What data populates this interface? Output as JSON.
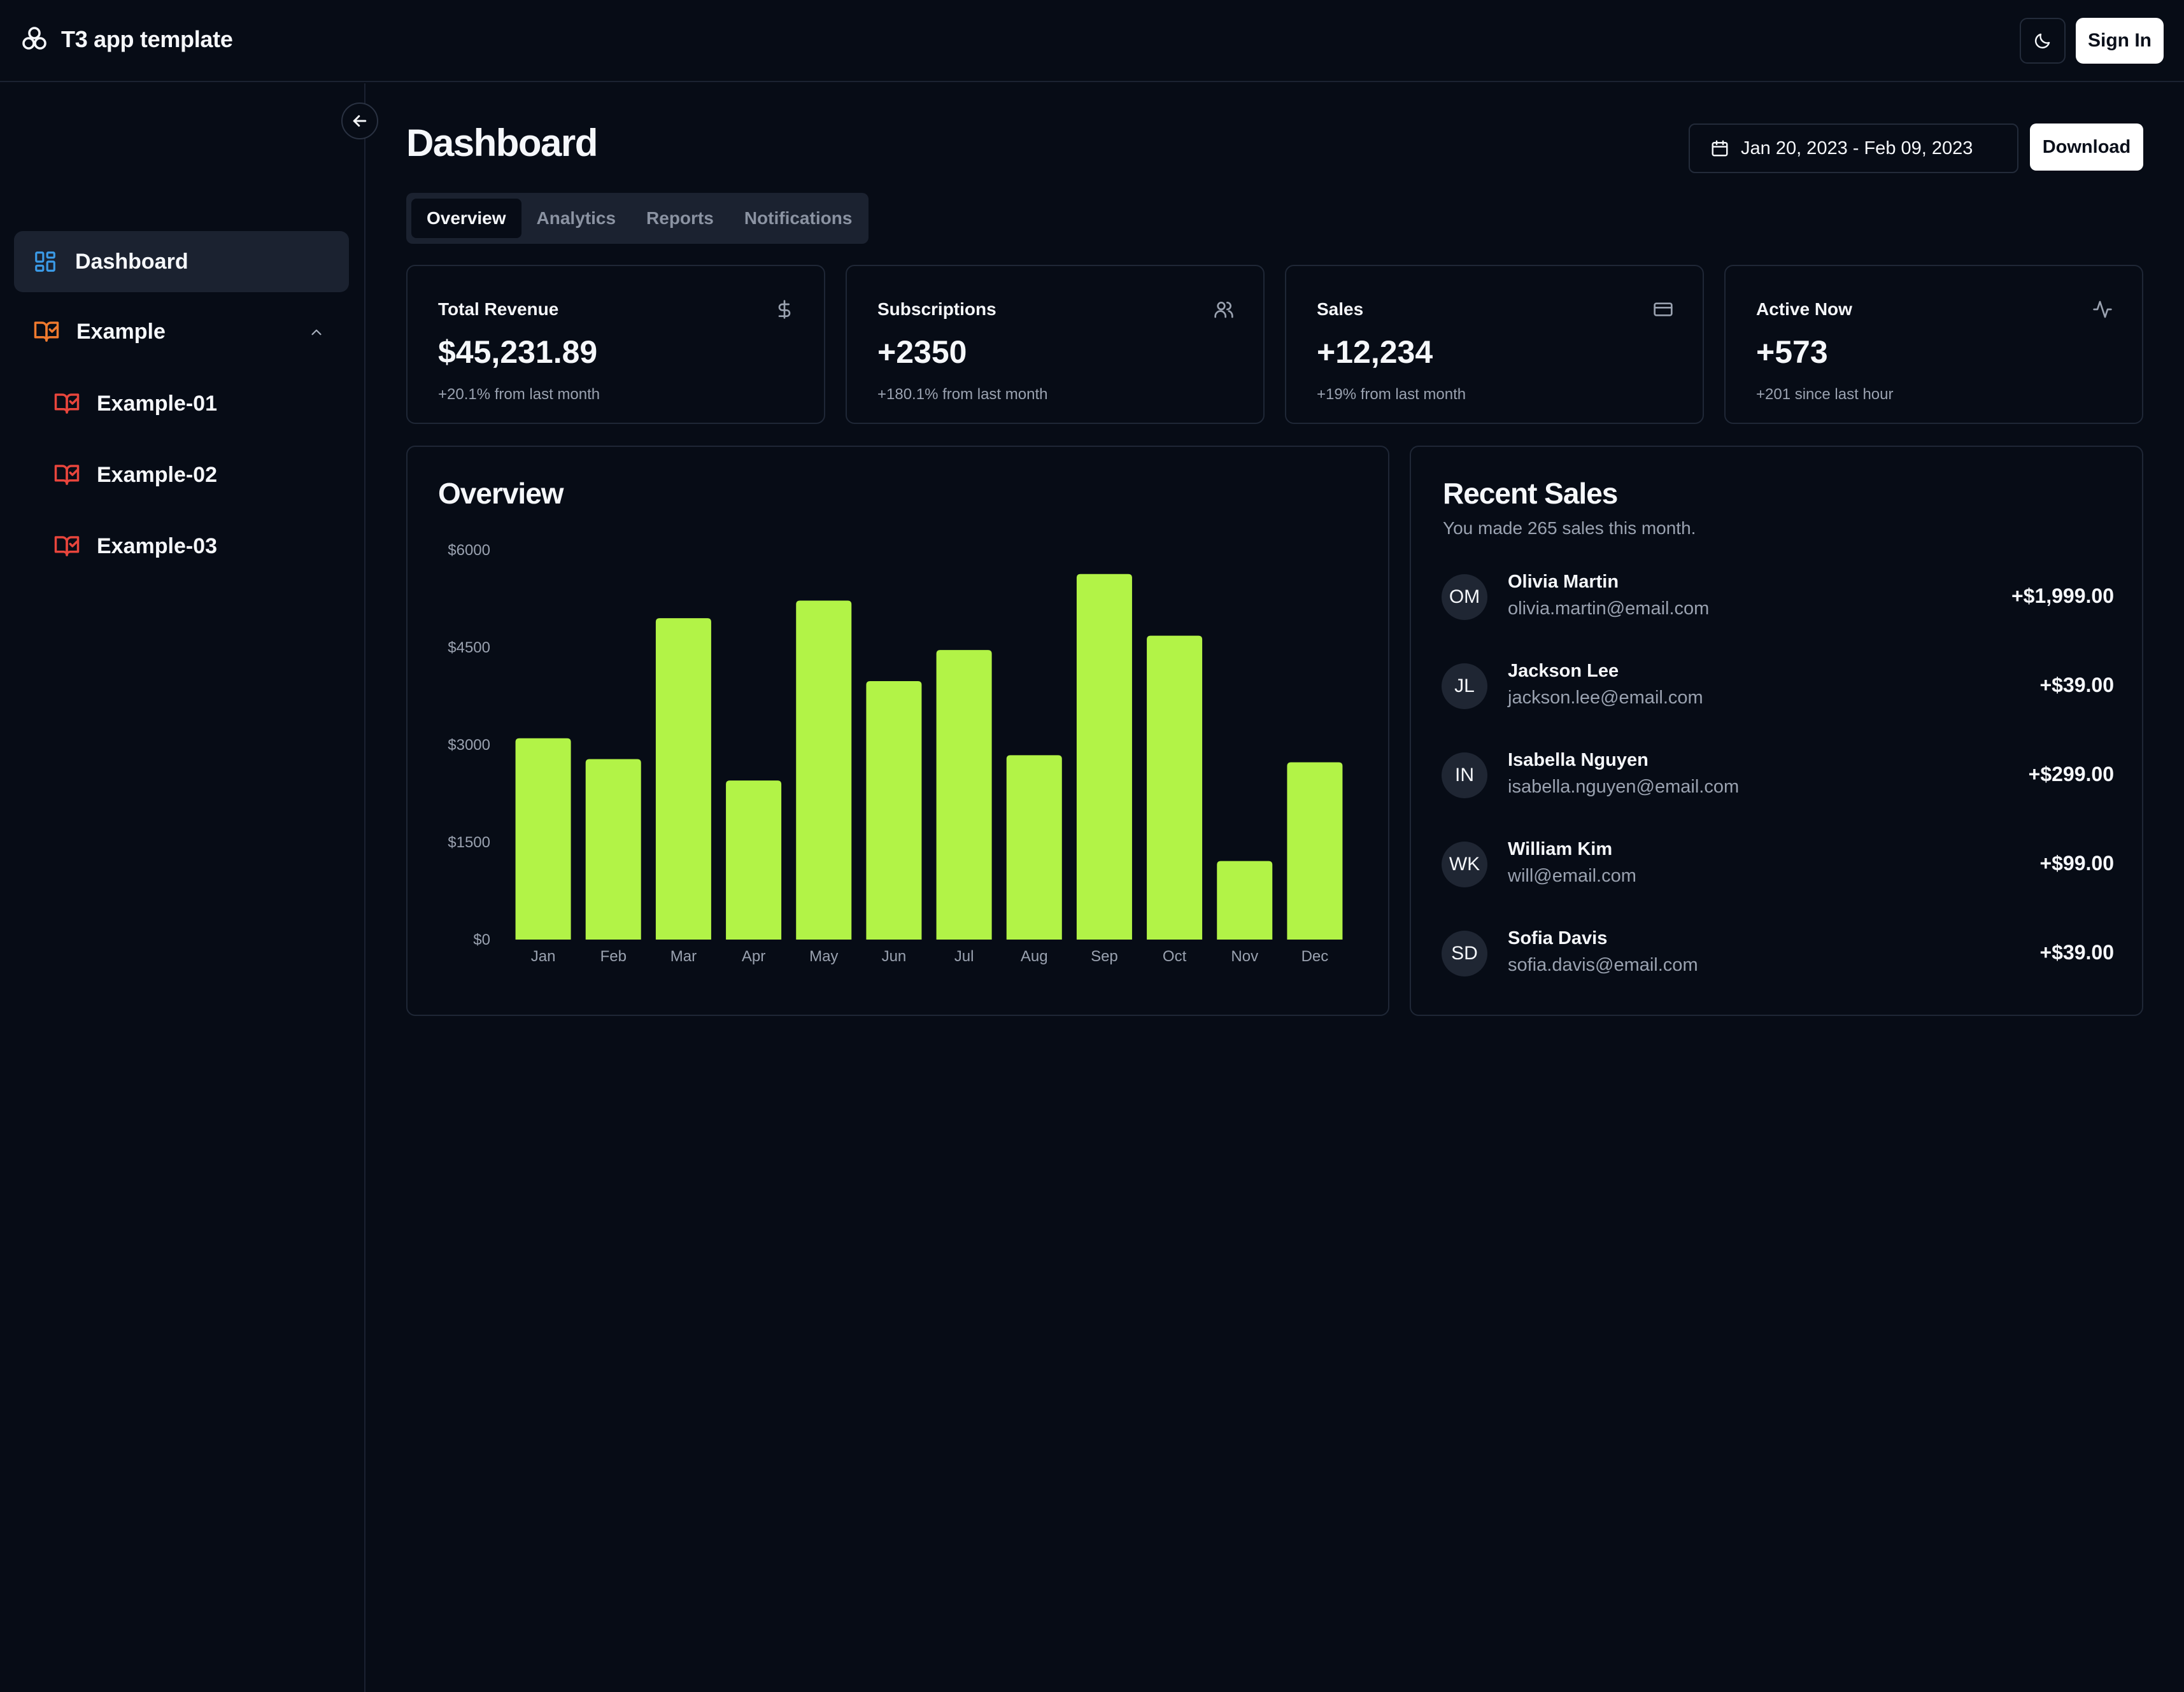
{
  "app": {
    "title": "T3 app template"
  },
  "header": {
    "theme_icon": "moon-icon",
    "sign_in_label": "Sign In"
  },
  "sidebar": {
    "collapse_icon": "arrow-left-icon",
    "items": [
      {
        "label": "Dashboard",
        "icon": "dashboard-grid-icon",
        "active": true
      },
      {
        "label": "Example",
        "icon": "book-check-icon",
        "expanded": true,
        "children": [
          {
            "label": "Example-01",
            "icon": "book-check-icon"
          },
          {
            "label": "Example-02",
            "icon": "book-check-icon"
          },
          {
            "label": "Example-03",
            "icon": "book-check-icon"
          }
        ]
      }
    ]
  },
  "main": {
    "title": "Dashboard",
    "date_range": "Jan 20, 2023 - Feb 09, 2023",
    "download_label": "Download",
    "tabs": [
      {
        "label": "Overview",
        "active": true
      },
      {
        "label": "Analytics"
      },
      {
        "label": "Reports"
      },
      {
        "label": "Notifications"
      }
    ],
    "stats": [
      {
        "title": "Total Revenue",
        "value": "$45,231.89",
        "sub": "+20.1% from last month",
        "icon": "dollar-icon"
      },
      {
        "title": "Subscriptions",
        "value": "+2350",
        "sub": "+180.1% from last month",
        "icon": "users-icon"
      },
      {
        "title": "Sales",
        "value": "+12,234",
        "sub": "+19% from last month",
        "icon": "credit-card-icon"
      },
      {
        "title": "Active Now",
        "value": "+573",
        "sub": "+201 since last hour",
        "icon": "activity-icon"
      }
    ],
    "overview": {
      "title": "Overview"
    },
    "recent_sales": {
      "title": "Recent Sales",
      "subtitle": "You made 265 sales this month.",
      "items": [
        {
          "initials": "OM",
          "name": "Olivia Martin",
          "email": "olivia.martin@email.com",
          "amount": "+$1,999.00"
        },
        {
          "initials": "JL",
          "name": "Jackson Lee",
          "email": "jackson.lee@email.com",
          "amount": "+$39.00"
        },
        {
          "initials": "IN",
          "name": "Isabella Nguyen",
          "email": "isabella.nguyen@email.com",
          "amount": "+$299.00"
        },
        {
          "initials": "WK",
          "name": "William Kim",
          "email": "will@email.com",
          "amount": "+$99.00"
        },
        {
          "initials": "SD",
          "name": "Sofia Davis",
          "email": "sofia.davis@email.com",
          "amount": "+$39.00"
        }
      ]
    }
  },
  "colors": {
    "background": "#070c16",
    "bar": "#b2f347",
    "dashboard_icon": "#3b9be8",
    "example_icon": "#f07a2e",
    "sub_icon": "#e8453c"
  },
  "chart_data": {
    "type": "bar",
    "categories": [
      "Jan",
      "Feb",
      "Mar",
      "Apr",
      "May",
      "Jun",
      "Jul",
      "Aug",
      "Sep",
      "Oct",
      "Nov",
      "Dec"
    ],
    "values": [
      3100,
      2780,
      4950,
      2450,
      5220,
      3980,
      4460,
      2840,
      5630,
      4680,
      1210,
      2730
    ],
    "yticks": [
      "$0",
      "$1500",
      "$3000",
      "$4500",
      "$6000"
    ],
    "ylim": [
      0,
      6000
    ],
    "title": "",
    "xlabel": "",
    "ylabel": "",
    "grid": false
  }
}
